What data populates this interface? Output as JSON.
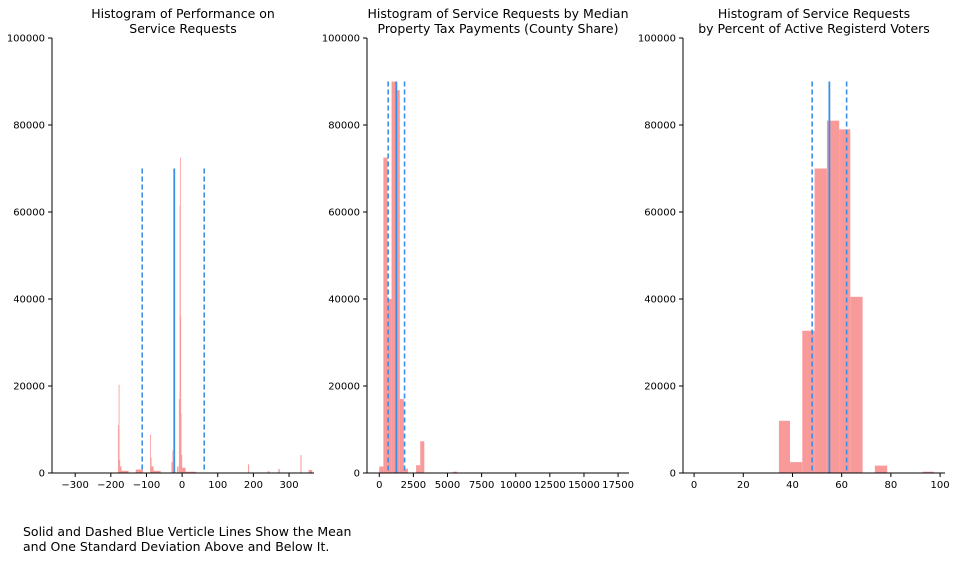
{
  "caption": "Solid and Dashed Blue Verticle Lines Show the Mean\nand One Standard Deviation Above and Below It.",
  "colors": {
    "bar": "#f99a9a",
    "line": "#3a8fe6",
    "axis": "#000000"
  },
  "chart_data": [
    {
      "type": "bar",
      "title": "Histogram of Performance on\nService Requests",
      "xlim": [
        -365,
        370
      ],
      "ylim": [
        0,
        100000
      ],
      "xticks": [
        -300,
        -200,
        -100,
        0,
        100,
        200,
        300
      ],
      "yticks": [
        0,
        20000,
        40000,
        60000,
        80000,
        100000
      ],
      "bars": [
        {
          "x0": -180,
          "x1": -178,
          "y": 11000
        },
        {
          "x0": -178,
          "x1": -176,
          "y": 20300
        },
        {
          "x0": -176,
          "x1": -174,
          "y": 3000
        },
        {
          "x0": -174,
          "x1": -170,
          "y": 1500
        },
        {
          "x0": -170,
          "x1": -150,
          "y": 500
        },
        {
          "x0": -130,
          "x1": -110,
          "y": 800
        },
        {
          "x0": -90,
          "x1": -88,
          "y": 8800
        },
        {
          "x0": -88,
          "x1": -86,
          "y": 3500
        },
        {
          "x0": -86,
          "x1": -80,
          "y": 1500
        },
        {
          "x0": -80,
          "x1": -60,
          "y": 500
        },
        {
          "x0": -30,
          "x1": -27,
          "y": 2500
        },
        {
          "x0": -27,
          "x1": -25,
          "y": 5200
        },
        {
          "x0": -14,
          "x1": -10,
          "y": 1500
        },
        {
          "x0": -9,
          "x1": -7,
          "y": 17000
        },
        {
          "x0": -7,
          "x1": -6,
          "y": 61500
        },
        {
          "x0": -6,
          "x1": -5,
          "y": 72500
        },
        {
          "x0": -5,
          "x1": -4,
          "y": 36000
        },
        {
          "x0": -4,
          "x1": -2,
          "y": 13700
        },
        {
          "x0": -2,
          "x1": 0,
          "y": 4200
        },
        {
          "x0": 0,
          "x1": 10,
          "y": 1200
        },
        {
          "x0": 10,
          "x1": 40,
          "y": 300
        },
        {
          "x0": 185,
          "x1": 188,
          "y": 2000
        },
        {
          "x0": 240,
          "x1": 245,
          "y": 400
        },
        {
          "x0": 270,
          "x1": 274,
          "y": 900
        },
        {
          "x0": 332,
          "x1": 335,
          "y": 4100
        },
        {
          "x0": 355,
          "x1": 365,
          "y": 700
        }
      ],
      "mean": -22,
      "std_lines": [
        -112,
        62
      ],
      "mean_top": 70000,
      "std_top": 70000
    },
    {
      "type": "bar",
      "title": "Histogram of Service Requests by Median\nProperty Tax Payments (County Share)",
      "xlim": [
        -900,
        18300
      ],
      "ylim": [
        0,
        100000
      ],
      "xticks": [
        0,
        2500,
        5000,
        7500,
        10000,
        12500,
        15000,
        17500
      ],
      "yticks": [
        0,
        20000,
        40000,
        60000,
        80000,
        100000
      ],
      "bars": [
        {
          "x0": 0,
          "x1": 300,
          "y": 1500
        },
        {
          "x0": 300,
          "x1": 600,
          "y": 72500
        },
        {
          "x0": 600,
          "x1": 900,
          "y": 40000
        },
        {
          "x0": 900,
          "x1": 1200,
          "y": 90000
        },
        {
          "x0": 1200,
          "x1": 1500,
          "y": 88000
        },
        {
          "x0": 1500,
          "x1": 1800,
          "y": 17000
        },
        {
          "x0": 1800,
          "x1": 2100,
          "y": 1000
        },
        {
          "x0": 2700,
          "x1": 3000,
          "y": 1800
        },
        {
          "x0": 3000,
          "x1": 3300,
          "y": 7300
        },
        {
          "x0": 5400,
          "x1": 5700,
          "y": 300
        }
      ],
      "mean": 1250,
      "std_lines": [
        650,
        1850
      ],
      "mean_top": 90000,
      "std_top": 90000
    },
    {
      "type": "bar",
      "title": "Histogram of Service Requests\nby Percent of Active Registerd Voters",
      "xlim": [
        -4.5,
        102
      ],
      "ylim": [
        0,
        100000
      ],
      "xticks": [
        0,
        20,
        40,
        60,
        80,
        100
      ],
      "yticks": [
        0,
        20000,
        40000,
        60000,
        80000,
        100000
      ],
      "bars": [
        {
          "x0": 34.5,
          "x1": 39,
          "y": 12000
        },
        {
          "x0": 39,
          "x1": 44,
          "y": 2500
        },
        {
          "x0": 44,
          "x1": 49,
          "y": 32700
        },
        {
          "x0": 49,
          "x1": 54,
          "y": 70000
        },
        {
          "x0": 54,
          "x1": 59,
          "y": 81000
        },
        {
          "x0": 59,
          "x1": 63.5,
          "y": 79000
        },
        {
          "x0": 63.5,
          "x1": 68.5,
          "y": 40500
        },
        {
          "x0": 73.5,
          "x1": 78.5,
          "y": 1700
        },
        {
          "x0": 93,
          "x1": 97.5,
          "y": 300
        }
      ],
      "mean": 55,
      "std_lines": [
        48,
        62
      ],
      "mean_top": 90000,
      "std_top": 90000
    }
  ]
}
